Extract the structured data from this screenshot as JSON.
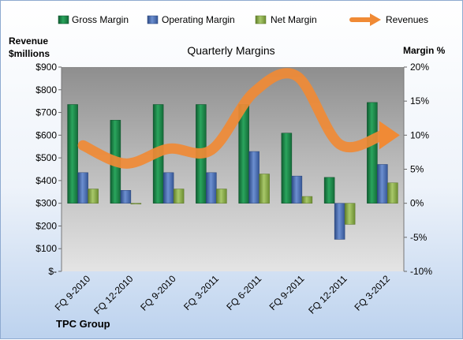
{
  "chart_data": {
    "type": "bar",
    "title": "Quarterly Margins",
    "categories": [
      "FQ 9-2010",
      "FQ 12-2010",
      "FQ 9-2010",
      "FQ 3-2011",
      "FQ 6-2011",
      "FQ 9-2011",
      "FQ 12-2011",
      "FQ 3-2012"
    ],
    "y_left_label": [
      "Revenue",
      "$millions"
    ],
    "y_right_label": "Margin %",
    "y_left_ticks": [
      "$-",
      "$100",
      "$200",
      "$300",
      "$400",
      "$500",
      "$600",
      "$700",
      "$800",
      "$900"
    ],
    "y_left_range": [
      0,
      900
    ],
    "y_right_ticks": [
      "-10%",
      "-5%",
      "0%",
      "5%",
      "10%",
      "15%",
      "20%"
    ],
    "y_right_range": [
      -10,
      20
    ],
    "grid": false,
    "legend_position": "top",
    "series": [
      {
        "name": "Gross Margin",
        "type": "bar",
        "axis": "right",
        "color": "#1f8a4c",
        "values": [
          14.5,
          12.2,
          14.5,
          14.5,
          14.5,
          10.3,
          3.8,
          14.8
        ]
      },
      {
        "name": "Operating Margin",
        "type": "bar",
        "axis": "right",
        "color": "#4a6fb5",
        "values": [
          4.5,
          1.9,
          4.5,
          4.5,
          7.6,
          4.0,
          -5.3,
          5.7
        ]
      },
      {
        "name": "Net Margin",
        "type": "bar",
        "axis": "right",
        "color": "#8db24a",
        "values": [
          2.1,
          -0.1,
          2.1,
          2.1,
          4.3,
          1.0,
          -3.1,
          3.0
        ]
      },
      {
        "name": "Revenues",
        "type": "line",
        "axis": "left",
        "color": "#f08a35",
        "values": [
          555,
          475,
          540,
          535,
          790,
          860,
          560,
          600
        ]
      }
    ],
    "footer": "TPC Group"
  }
}
